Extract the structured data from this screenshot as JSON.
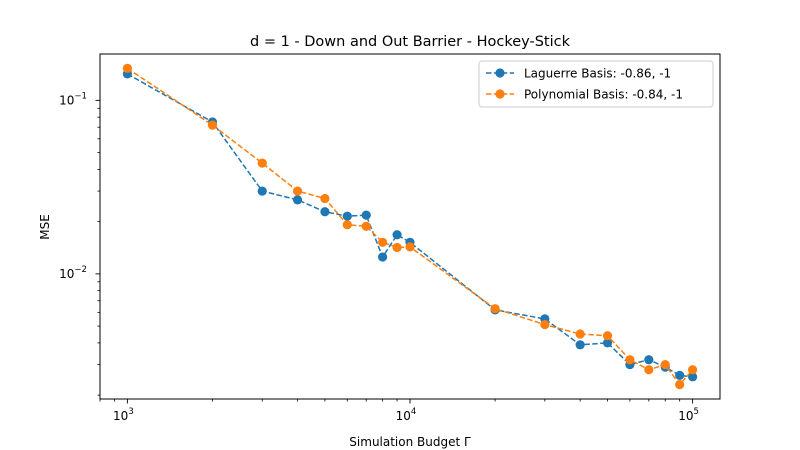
{
  "chart_data": {
    "type": "line",
    "title": "d = 1 - Down and Out Barrier - Hockey-Stick",
    "xlabel": "Simulation Budget Γ",
    "ylabel": "MSE",
    "xscale": "log",
    "yscale": "log",
    "xlim": [
      800,
      125000
    ],
    "ylim": [
      0.0019,
      0.185
    ],
    "grid": false,
    "legend_position": "top-right",
    "x_ticks": [
      {
        "value": 1000,
        "base": "10",
        "exp": "3"
      },
      {
        "value": 10000,
        "base": "10",
        "exp": "4"
      },
      {
        "value": 100000,
        "base": "10",
        "exp": "5"
      }
    ],
    "y_ticks": [
      {
        "value": 0.01,
        "base": "10",
        "exp": "−2"
      },
      {
        "value": 0.1,
        "base": "10",
        "exp": "−1"
      }
    ],
    "x": [
      1000,
      2000,
      3000,
      4000,
      5000,
      6000,
      7000,
      8000,
      9000,
      10000,
      20000,
      30000,
      40000,
      50000,
      60000,
      70000,
      80000,
      90000,
      100000
    ],
    "series": [
      {
        "name": "Laguerre Basis: -0.86, -1",
        "color": "#1f77b4",
        "values": [
          0.142,
          0.075,
          0.03,
          0.0267,
          0.0228,
          0.0215,
          0.0218,
          0.0125,
          0.0168,
          0.0152,
          0.0062,
          0.0055,
          0.0039,
          0.004,
          0.003,
          0.0032,
          0.0029,
          0.0026,
          0.00255
        ]
      },
      {
        "name": "Polynomial Basis: -0.84, -1",
        "color": "#ff7f0e",
        "values": [
          0.153,
          0.072,
          0.0435,
          0.03,
          0.0272,
          0.0192,
          0.0188,
          0.0152,
          0.0142,
          0.0143,
          0.0063,
          0.0051,
          0.0045,
          0.0044,
          0.0032,
          0.0028,
          0.003,
          0.0023,
          0.0028
        ]
      }
    ]
  }
}
